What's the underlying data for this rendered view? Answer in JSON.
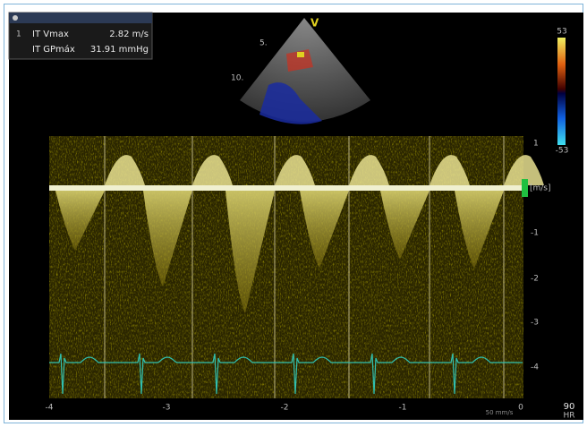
{
  "measurements": {
    "badge": "1",
    "rows": [
      {
        "label": "IT Vmax",
        "value": "2.82 m/s"
      },
      {
        "label": "IT GPmáx",
        "value": "31.91 mmHg"
      }
    ]
  },
  "sector": {
    "marker": "V",
    "depth_labels": [
      "5.",
      "10."
    ]
  },
  "color_scale": {
    "max": "53",
    "min": "-53"
  },
  "velocity_axis": {
    "unit": "[m/s]",
    "labels": [
      "1",
      "-1",
      "-2",
      "-3",
      "-4"
    ]
  },
  "time_axis": {
    "labels": [
      "-4",
      "-3",
      "-2",
      "-1",
      "0"
    ],
    "sweep": "50 mm/s"
  },
  "heart_rate": {
    "value": "90",
    "label": "HR"
  }
}
